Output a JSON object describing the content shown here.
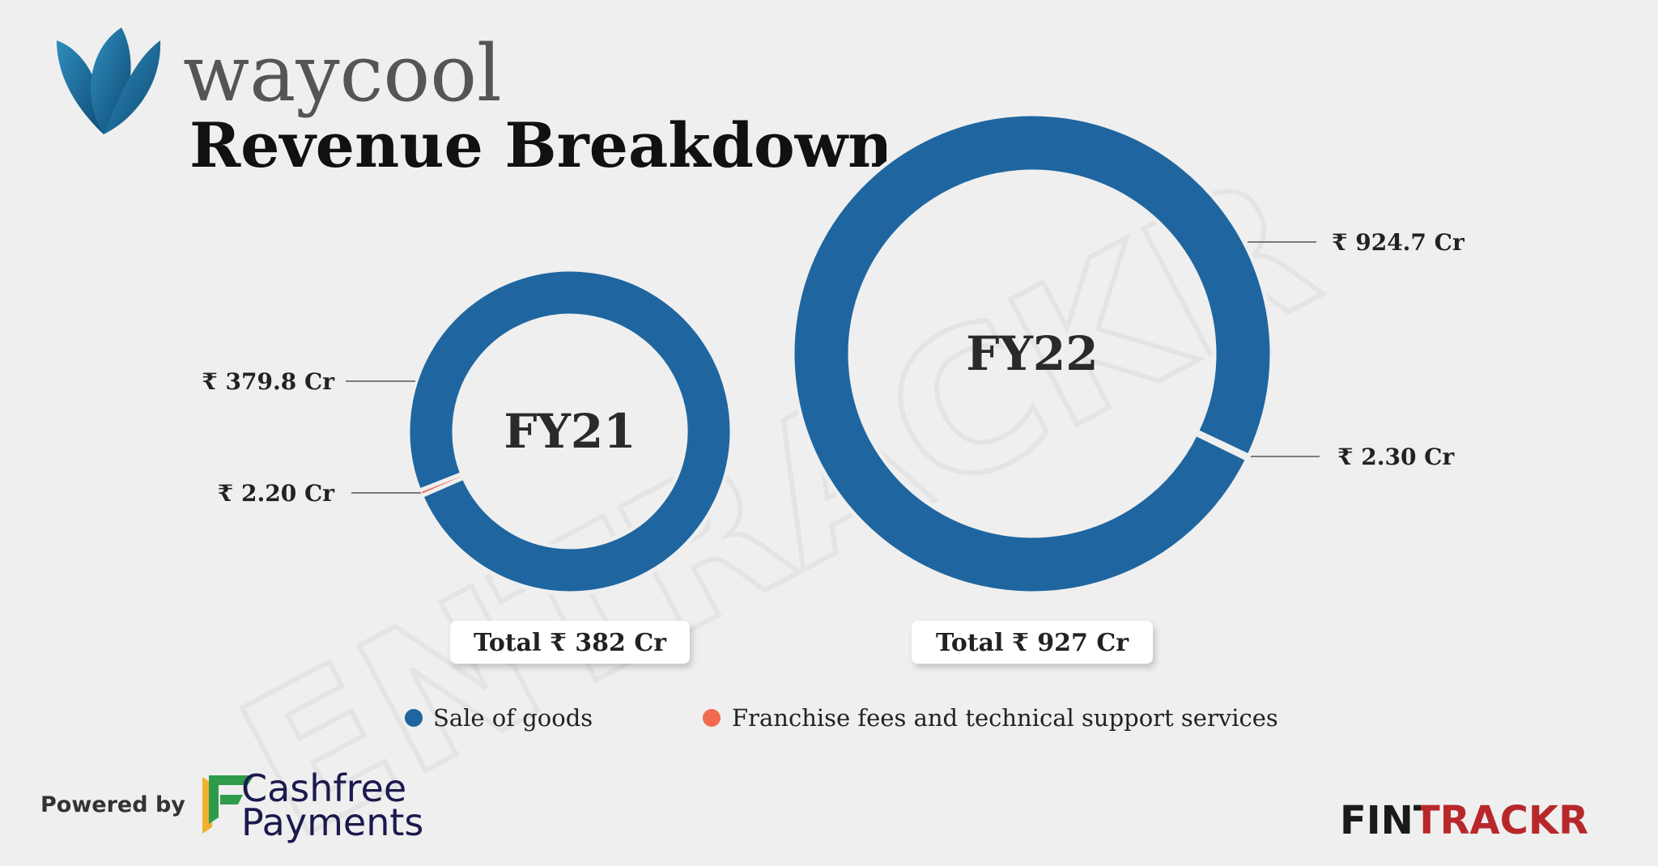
{
  "brand": "waycool",
  "title": "Revenue Breakdown",
  "watermark": "ENTRACKR",
  "chart_data": [
    {
      "type": "donut",
      "label": "FY21",
      "categories": [
        "Sale of goods",
        "Franchise fees and technical support services"
      ],
      "values": [
        379.8,
        2.2
      ],
      "value_labels": [
        "₹ 379.8 Cr",
        "₹ 2.20 Cr"
      ],
      "colors": [
        "#1f66a0",
        "#f26b50"
      ],
      "total": 382,
      "total_label": "Total ₹ 382 Cr"
    },
    {
      "type": "donut",
      "label": "FY22",
      "categories": [
        "Sale of goods",
        "Franchise fees and technical support services"
      ],
      "values": [
        924.7,
        2.3
      ],
      "value_labels": [
        "₹ 924.7 Cr",
        "₹ 2.30 Cr"
      ],
      "colors": [
        "#1f66a0",
        "#f26b50"
      ],
      "total": 927,
      "total_label": "Total ₹ 927 Cr"
    }
  ],
  "footer": {
    "powered_by": "Powered by",
    "sponsor_line1": "Cashfree",
    "sponsor_line2": "Payments",
    "publisher": "FINTRACKR"
  }
}
